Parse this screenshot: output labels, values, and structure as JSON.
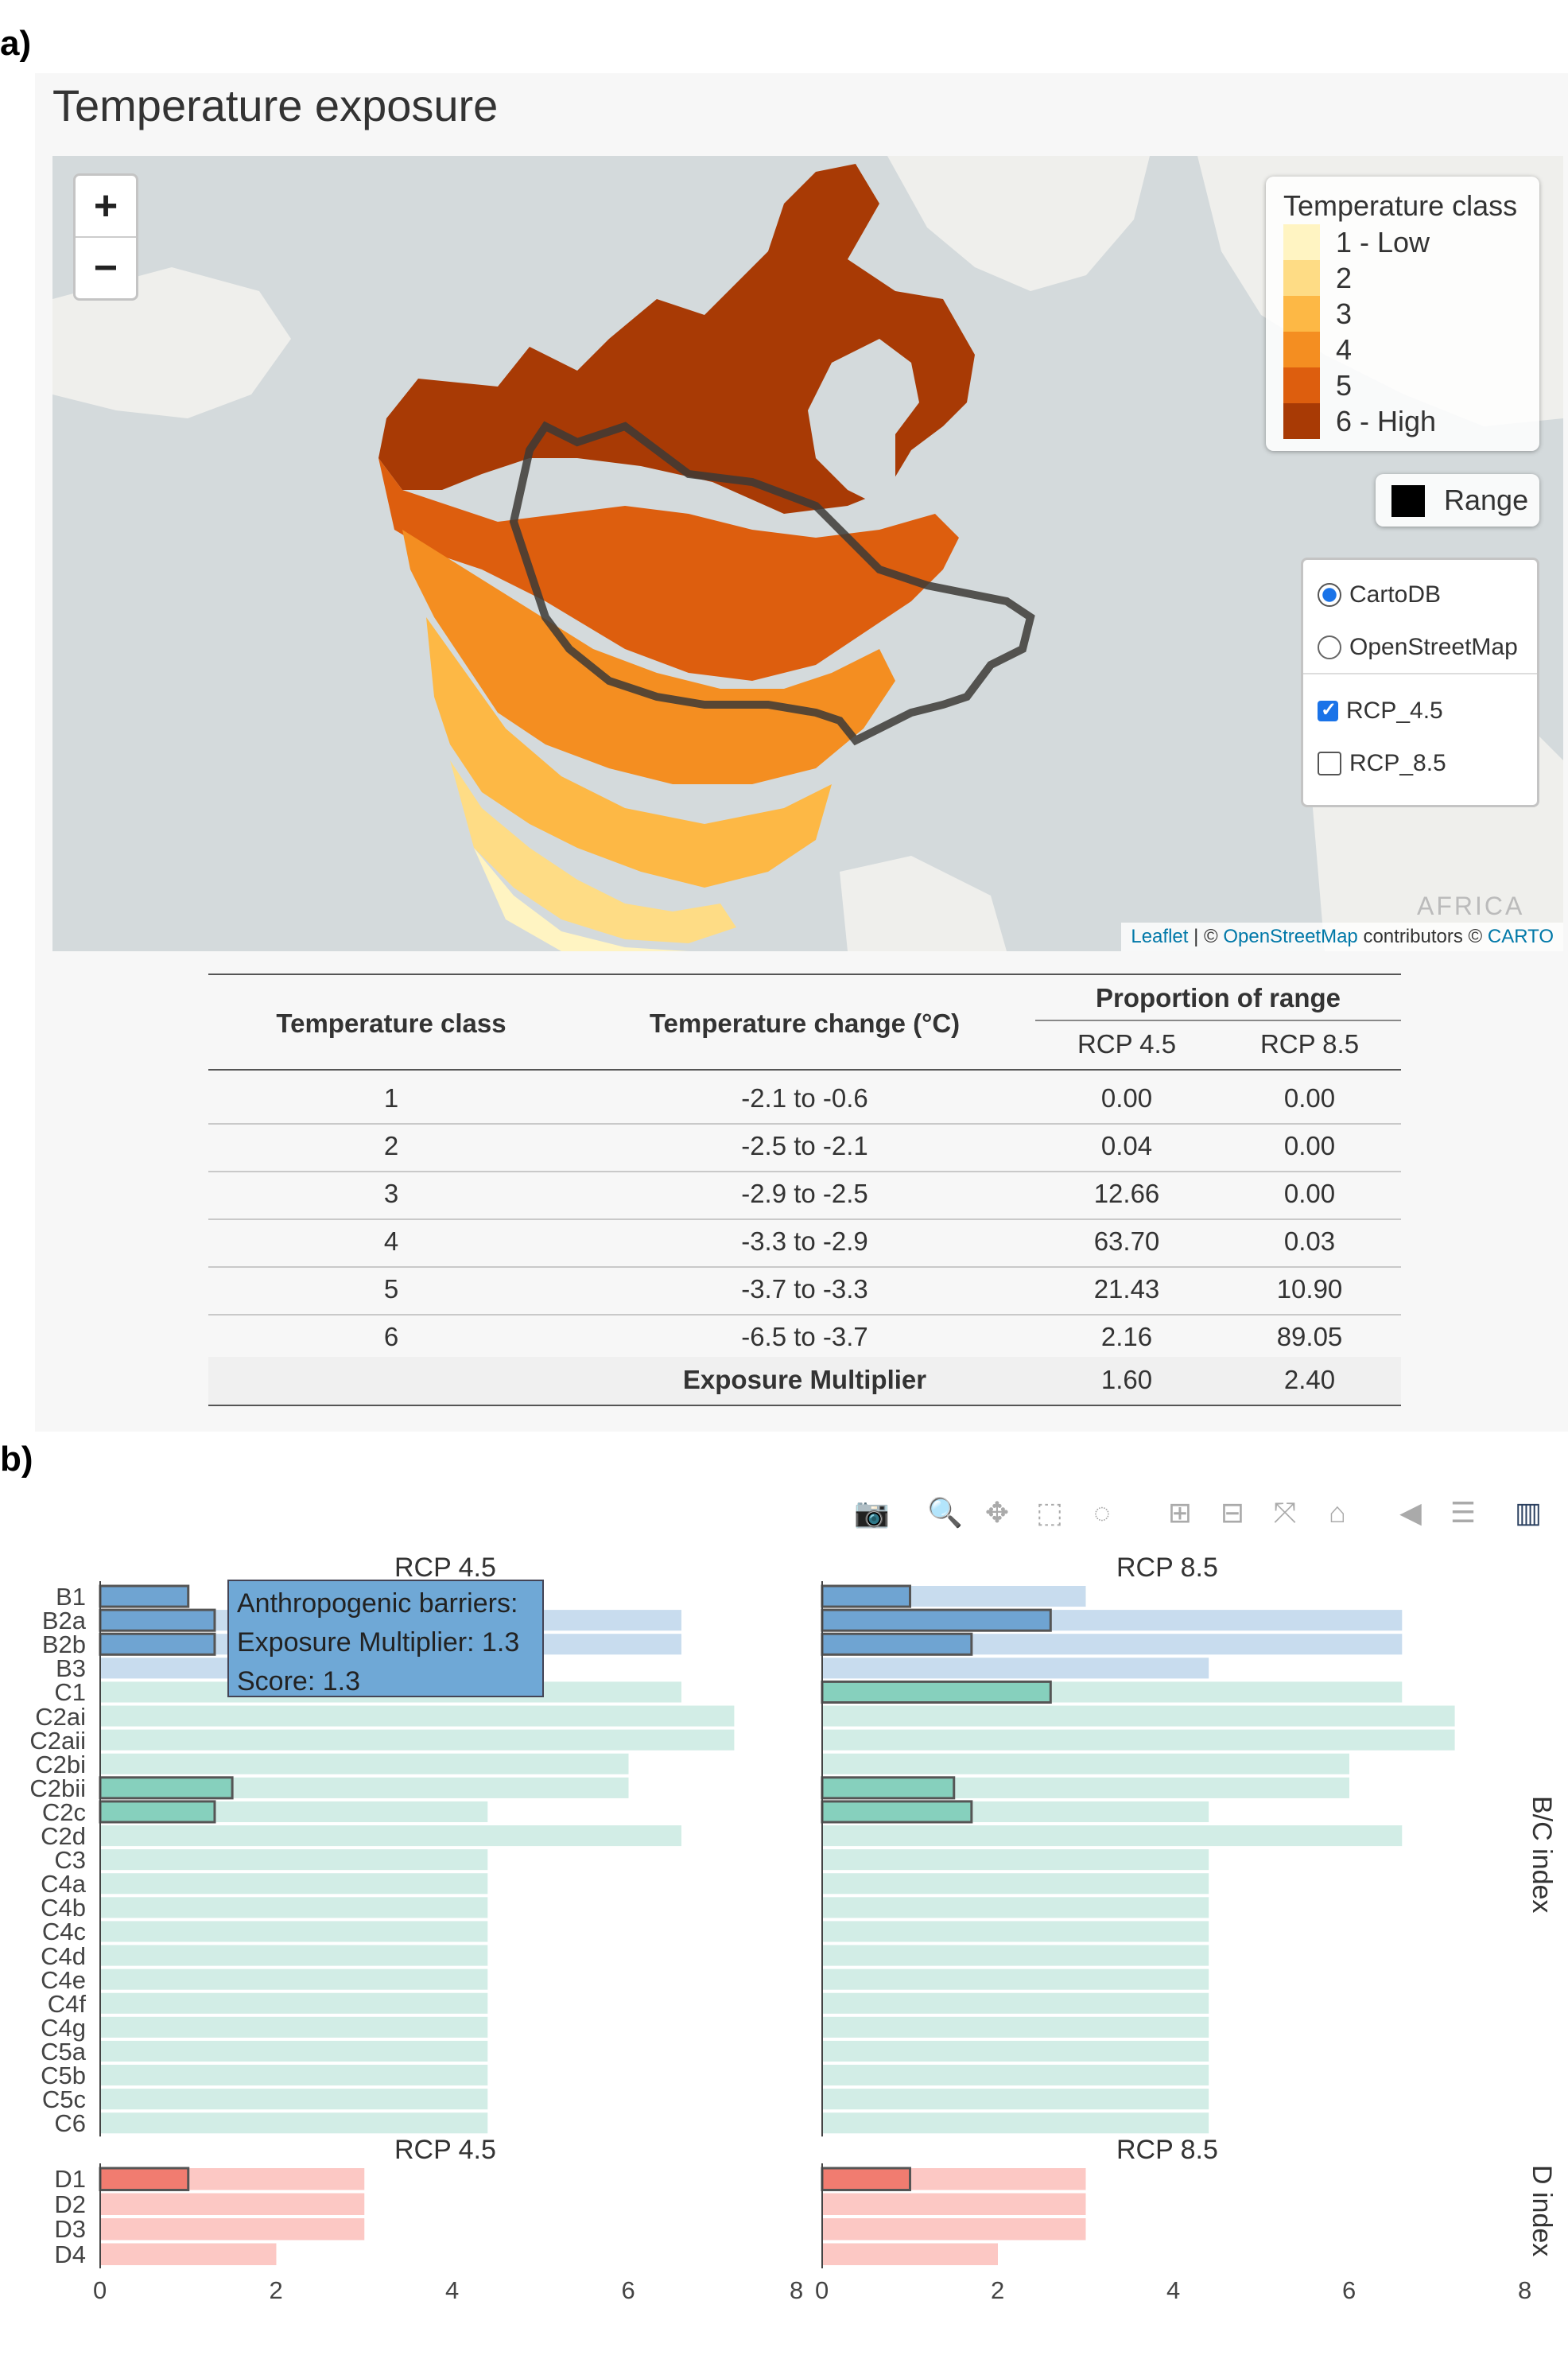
{
  "panel_a_label": "a)",
  "panel_b_label": "b)",
  "map": {
    "title": "Temperature exposure",
    "zoom_in": "+",
    "zoom_out": "−",
    "legend_title": "Temperature class",
    "legend_items": [
      {
        "label": "1 - Low",
        "color": "#fff4c2"
      },
      {
        "label": "2",
        "color": "#fedc85"
      },
      {
        "label": "3",
        "color": "#fdb845"
      },
      {
        "label": "4",
        "color": "#f48e21"
      },
      {
        "label": "5",
        "color": "#dd5e0e"
      },
      {
        "label": "6 - High",
        "color": "#a83a05"
      }
    ],
    "range_label": "Range",
    "layers": {
      "base1": "CartoDB",
      "base2": "OpenStreetMap",
      "overlay1": "RCP_4.5",
      "overlay2": "RCP_8.5"
    },
    "attribution_leaflet": "Leaflet",
    "attribution_sep": " | © ",
    "attribution_osm": "OpenStreetMap",
    "attribution_mid": " contributors © ",
    "attribution_carto": "CARTO",
    "africa_label": "AFRICA"
  },
  "table": {
    "col_class": "Temperature class",
    "col_change": "Temperature change (°C)",
    "col_group": "Proportion of range",
    "col_rcp45": "RCP 4.5",
    "col_rcp85": "RCP 8.5",
    "rows": [
      {
        "cls": "1",
        "change": "-2.1 to -0.6",
        "rcp45": "0.00",
        "rcp85": "0.00"
      },
      {
        "cls": "2",
        "change": "-2.5 to -2.1",
        "rcp45": "0.04",
        "rcp85": "0.00"
      },
      {
        "cls": "3",
        "change": "-2.9 to -2.5",
        "rcp45": "12.66",
        "rcp85": "0.00"
      },
      {
        "cls": "4",
        "change": "-3.3 to -2.9",
        "rcp45": "63.70",
        "rcp85": "0.03"
      },
      {
        "cls": "5",
        "change": "-3.7 to -3.3",
        "rcp45": "21.43",
        "rcp85": "10.90"
      },
      {
        "cls": "6",
        "change": "-6.5 to -3.7",
        "rcp45": "2.16",
        "rcp85": "89.05"
      }
    ],
    "summary_label": "Exposure Multiplier",
    "summary_rcp45": "1.60",
    "summary_rcp85": "2.40"
  },
  "tooltip": {
    "line1": "Anthropogenic barriers:",
    "line2": "Exposure Multiplier: 1.3",
    "line3": "Score: 1.3"
  },
  "toolbar_icons": [
    "camera-icon",
    "zoom-icon",
    "pan-icon",
    "box-select-icon",
    "lasso-icon",
    "zoom-in-icon",
    "zoom-out-icon",
    "autoscale-icon",
    "reset-axes-icon",
    "spike-lines-icon",
    "compare-hover-icon",
    "plotly-logo-icon"
  ],
  "chart_data": [
    {
      "type": "bar",
      "orientation": "horizontal",
      "subtitle": "RCP 4.5",
      "side_title": "B/C index",
      "categories": [
        "B1",
        "B2a",
        "B2b",
        "B3",
        "C1",
        "C2ai",
        "C2aii",
        "C2bi",
        "C2bii",
        "C2c",
        "C2d",
        "C3",
        "C4a",
        "C4b",
        "C4c",
        "C4d",
        "C4e",
        "C4f",
        "C4g",
        "C5a",
        "C5b",
        "C5c",
        "C6"
      ],
      "background_max": [
        1.0,
        6.6,
        6.6,
        4.4,
        6.6,
        7.2,
        7.2,
        6.0,
        6.0,
        4.4,
        6.6,
        4.4,
        4.4,
        4.4,
        4.4,
        4.4,
        4.4,
        4.4,
        4.4,
        4.4,
        4.4,
        4.4,
        4.4
      ],
      "scores": [
        1.0,
        1.3,
        1.3,
        0,
        0,
        0,
        0,
        0,
        1.5,
        1.3,
        0,
        0,
        0,
        0,
        0,
        0,
        0,
        0,
        0,
        0,
        0,
        0,
        0
      ],
      "xlim": [
        0,
        8
      ],
      "xticks": [
        "0",
        "2",
        "4",
        "6",
        "8"
      ]
    },
    {
      "type": "bar",
      "orientation": "horizontal",
      "subtitle": "RCP 8.5",
      "categories": [
        "B1",
        "B2a",
        "B2b",
        "B3",
        "C1",
        "C2ai",
        "C2aii",
        "C2bi",
        "C2bii",
        "C2c",
        "C2d",
        "C3",
        "C4a",
        "C4b",
        "C4c",
        "C4d",
        "C4e",
        "C4f",
        "C4g",
        "C5a",
        "C5b",
        "C5c",
        "C6"
      ],
      "background_max": [
        3.0,
        6.6,
        6.6,
        4.4,
        6.6,
        7.2,
        7.2,
        6.0,
        6.0,
        4.4,
        6.6,
        4.4,
        4.4,
        4.4,
        4.4,
        4.4,
        4.4,
        4.4,
        4.4,
        4.4,
        4.4,
        4.4,
        4.4
      ],
      "scores": [
        1.0,
        2.6,
        1.7,
        0,
        2.6,
        0,
        0,
        0,
        1.5,
        1.7,
        0,
        0,
        0,
        0,
        0,
        0,
        0,
        0,
        0,
        0,
        0,
        0,
        0
      ],
      "xlim": [
        0,
        8
      ],
      "xticks": [
        "0",
        "2",
        "4",
        "6",
        "8"
      ]
    },
    {
      "type": "bar",
      "orientation": "horizontal",
      "subtitle": "RCP 4.5",
      "side_title": "D index",
      "categories": [
        "D1",
        "D2",
        "D3",
        "D4"
      ],
      "background_max": [
        3.0,
        3.0,
        3.0,
        2.0
      ],
      "scores": [
        1.0,
        0,
        0,
        0
      ],
      "xlim": [
        0,
        8
      ],
      "xticks": [
        "0",
        "2",
        "4",
        "6",
        "8"
      ]
    },
    {
      "type": "bar",
      "orientation": "horizontal",
      "subtitle": "RCP 8.5",
      "categories": [
        "D1",
        "D2",
        "D3",
        "D4"
      ],
      "background_max": [
        3.0,
        3.0,
        3.0,
        2.0
      ],
      "scores": [
        1.0,
        0,
        0,
        0
      ],
      "xlim": [
        0,
        8
      ],
      "xticks": [
        "0",
        "2",
        "4",
        "6",
        "8"
      ]
    }
  ],
  "colors": {
    "b_light": "#c8dcee",
    "b_dark": "#6fa4d2",
    "c_light": "#d2ede6",
    "c_dark": "#86d0bd",
    "d_light": "#fcc8c4",
    "d_dark": "#f17c70",
    "land": "#f2f2ef",
    "water": "#d4dadc"
  }
}
